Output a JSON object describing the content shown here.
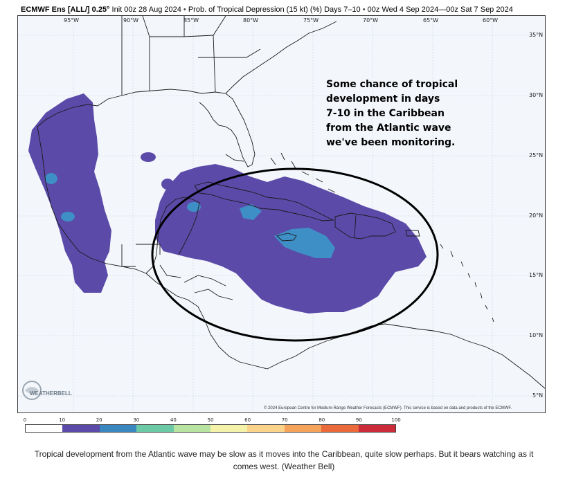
{
  "header": {
    "brand": "ECMWF Ens [ALL/] 0.25°",
    "init": "Init 00z 28 Aug 2024",
    "product": "Prob. of Tropical Depression (15 kt) (%)",
    "days": "Days 7–10",
    "valid": "00z Wed 4 Sep 2024—00z Sat 7 Sep 2024"
  },
  "map": {
    "lon_labels": [
      "95°W",
      "90°W",
      "85°W",
      "80°W",
      "75°W",
      "70°W",
      "65°W",
      "60°W"
    ],
    "lat_labels": [
      "35°N",
      "30°N",
      "25°N",
      "20°N",
      "15°N",
      "10°N",
      "5°N"
    ],
    "annotation": [
      "Some chance of tropical",
      "development in days",
      "7-10 in the Caribbean",
      "from the Atlantic wave",
      "we've been monitoring."
    ],
    "copyright": "© 2024 European Centre for Medium-Range Weather Forecasts (ECMWF). This service is based on data and products of the ECMWF.",
    "logo_text": "WEATHERBELL",
    "colors": {
      "land_outline": "#1a1a1a",
      "prob_10_20": "#5b4aa8",
      "prob_20_30": "#3f8fc7",
      "circle": "#000000"
    }
  },
  "colorbar": {
    "ticks": [
      "0",
      "10",
      "20",
      "30",
      "40",
      "50",
      "60",
      "70",
      "80",
      "90",
      "100"
    ],
    "colors": [
      "#ffffff",
      "#5b4aa8",
      "#3a86bf",
      "#6cc9a6",
      "#b7e4a0",
      "#f5f2aa",
      "#fbd38a",
      "#f5a25a",
      "#ea6a3c",
      "#cc2b3a",
      "#8a0d3f"
    ]
  },
  "caption": "Tropical development from the Atlantic wave may be slow as it moves into the Caribbean, quite slow perhaps. But it bears watching as it comes west. (Weather Bell)"
}
